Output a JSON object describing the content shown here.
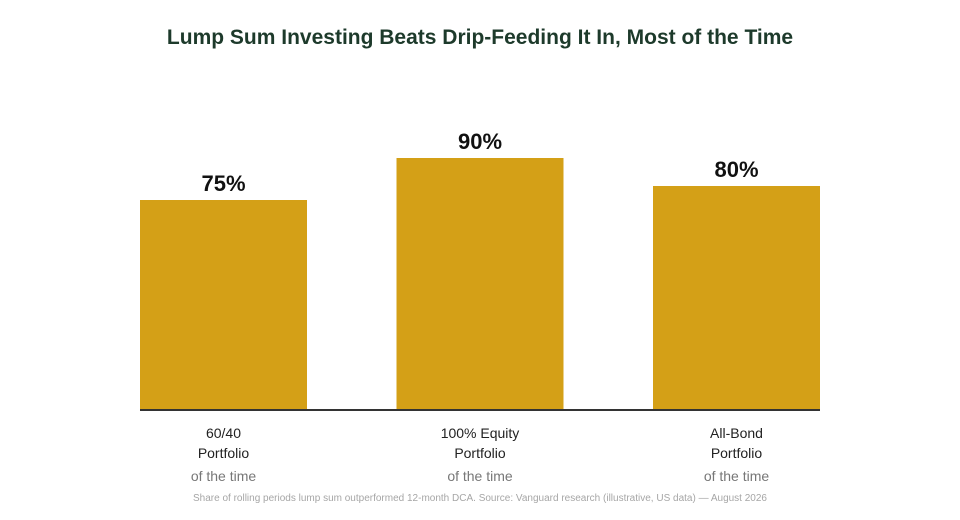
{
  "chart_data": {
    "type": "bar",
    "title": "Lump Sum Investing Beats Drip-Feeding It In, Most of the Time",
    "categories": [
      "60/40\nPortfolio",
      "100% Equity\nPortfolio",
      "All-Bond\nPortfolio"
    ],
    "values": [
      75,
      90,
      80
    ],
    "data_labels": [
      "75%",
      "90%",
      "80%"
    ],
    "sub_labels": [
      "of the time",
      "of the time",
      "of the time"
    ],
    "ylim": [
      0,
      100
    ],
    "grid": false,
    "legend": "none",
    "colors": {
      "bar": "#d4a017",
      "title": "#1d3a2b",
      "axis": "#333333",
      "sub_label": "#777777",
      "footnote": "#a6a6a6"
    }
  },
  "footnote": "Share of rolling periods lump sum outperformed 12-month DCA. Source: Vanguard research (illustrative, US data) — August 2026"
}
